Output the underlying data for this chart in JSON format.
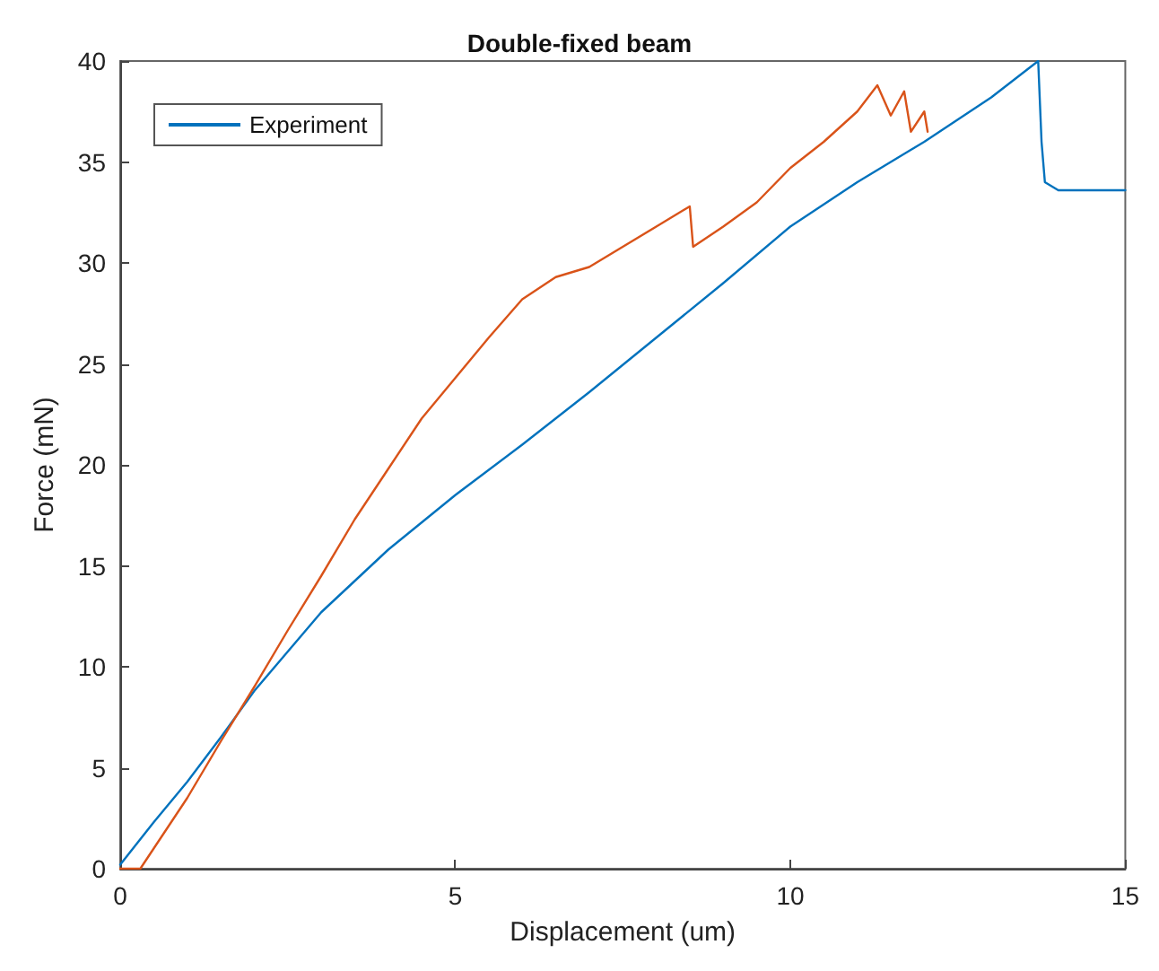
{
  "chart_data": {
    "type": "line",
    "title": "Double-fixed beam",
    "xlabel": "Displacement (um)",
    "ylabel": "Force (mN)",
    "xlim": [
      0,
      15
    ],
    "xticks": [
      0,
      5,
      10,
      15
    ],
    "ylim": [
      0,
      40
    ],
    "yticks": [
      0,
      5,
      10,
      15,
      20,
      25,
      30,
      35,
      40
    ],
    "grid": false,
    "legend": "top left",
    "marker": "none",
    "line_style": "solid",
    "series": [
      {
        "name": "Experiment",
        "color": "#0072bd",
        "x": [
          0,
          0.5,
          1,
          1.5,
          2,
          3,
          4,
          5,
          6,
          7,
          8,
          9,
          10,
          11,
          12,
          13,
          13.7,
          13.75,
          13.8,
          14,
          15
        ],
        "values": [
          0.2,
          2.3,
          4.3,
          6.5,
          8.8,
          12.7,
          15.8,
          18.5,
          21,
          23.6,
          26.3,
          29,
          31.8,
          34,
          36,
          38.2,
          40,
          36,
          34,
          33.6,
          33.6
        ]
      },
      {
        "color": "#d95319",
        "x": [
          0,
          0.3,
          0.5,
          1,
          1.5,
          2,
          2.5,
          3,
          3.5,
          4,
          4.5,
          5,
          5.5,
          6,
          6.5,
          7,
          7.5,
          8,
          8.5,
          8.55,
          9,
          9.5,
          10,
          10.5,
          11,
          11.3,
          11.5,
          11.7,
          11.8,
          12,
          12.05
        ],
        "values": [
          0,
          0,
          1,
          3.5,
          6.3,
          9,
          11.8,
          14.5,
          17.3,
          19.8,
          22.3,
          24.3,
          26.3,
          28.2,
          29.3,
          29.8,
          30.8,
          31.8,
          32.8,
          30.8,
          31.8,
          33,
          34.7,
          36,
          37.5,
          38.8,
          37.3,
          38.5,
          36.5,
          37.5,
          36.5
        ]
      }
    ]
  }
}
